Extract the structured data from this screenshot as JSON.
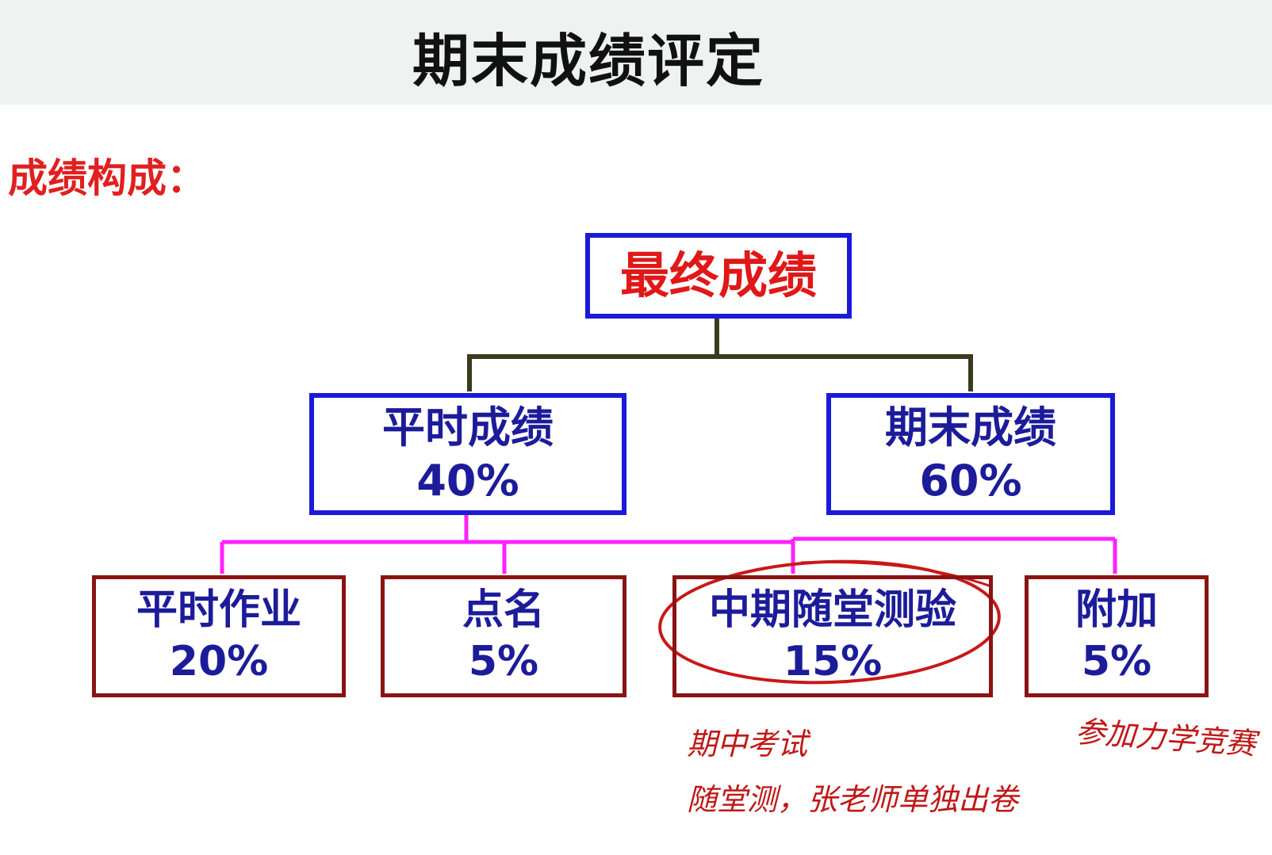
{
  "title": "期末成绩评定",
  "section_label": "成绩构成：",
  "root": {
    "label": "最终成绩"
  },
  "level1": [
    {
      "label": "平时成绩",
      "percent": "40%"
    },
    {
      "label": "期末成绩",
      "percent": "60%"
    }
  ],
  "level2": [
    {
      "label": "平时作业",
      "percent": "20%"
    },
    {
      "label": "点名",
      "percent": "5%"
    },
    {
      "label": "中期随堂测验",
      "percent": "15%"
    },
    {
      "label": "附加",
      "percent": "5%"
    }
  ],
  "handwritten_notes": {
    "midterm_line1": "期中考试",
    "midterm_line2": "随堂测，张老师单独出卷",
    "extra": "参加力学竞赛"
  },
  "colors": {
    "box_border_blue": "#1a1ad8",
    "box_border_darkred": "#8a1414",
    "root_text": "#e01818",
    "box_text": "#1c1c9a",
    "connector_top": "#3a3a1e",
    "connector_bottom": "#ff22ff",
    "annotation_red": "#c01818"
  }
}
